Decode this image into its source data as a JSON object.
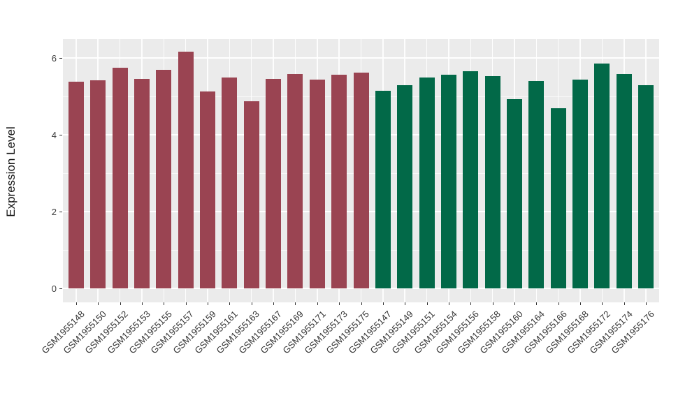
{
  "chart_data": {
    "type": "bar",
    "title": "",
    "xlabel": "",
    "ylabel": "Expression Level",
    "ylim": [
      0,
      6.5
    ],
    "yticks_major": [
      0,
      2,
      4,
      6
    ],
    "yticks_minor": [
      1,
      3,
      5
    ],
    "grid": "on",
    "legend": "none",
    "panel_background": "#EBEBEB",
    "grid_color": "#FFFFFF",
    "categories": [
      "GSM1955148",
      "GSM1955150",
      "GSM1955152",
      "GSM1955153",
      "GSM1955155",
      "GSM1955157",
      "GSM1955159",
      "GSM1955161",
      "GSM1955163",
      "GSM1955167",
      "GSM1955169",
      "GSM1955171",
      "GSM1955173",
      "GSM1955175",
      "GSM1955147",
      "GSM1955149",
      "GSM1955151",
      "GSM1955154",
      "GSM1955156",
      "GSM1955158",
      "GSM1955160",
      "GSM1955164",
      "GSM1955166",
      "GSM1955168",
      "GSM1955172",
      "GSM1955174",
      "GSM1955176"
    ],
    "values": [
      5.39,
      5.42,
      5.75,
      5.45,
      5.69,
      6.16,
      5.13,
      5.5,
      4.87,
      5.45,
      5.59,
      5.43,
      5.57,
      5.61,
      5.15,
      5.29,
      5.49,
      5.56,
      5.65,
      5.52,
      4.93,
      5.4,
      4.7,
      5.44,
      5.86,
      5.59,
      5.3
    ],
    "bar_groups": [
      "group1",
      "group1",
      "group1",
      "group1",
      "group1",
      "group1",
      "group1",
      "group1",
      "group1",
      "group1",
      "group1",
      "group1",
      "group1",
      "group1",
      "group2",
      "group2",
      "group2",
      "group2",
      "group2",
      "group2",
      "group2",
      "group2",
      "group2",
      "group2",
      "group2",
      "group2",
      "group2"
    ],
    "group_colors": {
      "group1": "#9A4452",
      "group2": "#026948"
    }
  }
}
